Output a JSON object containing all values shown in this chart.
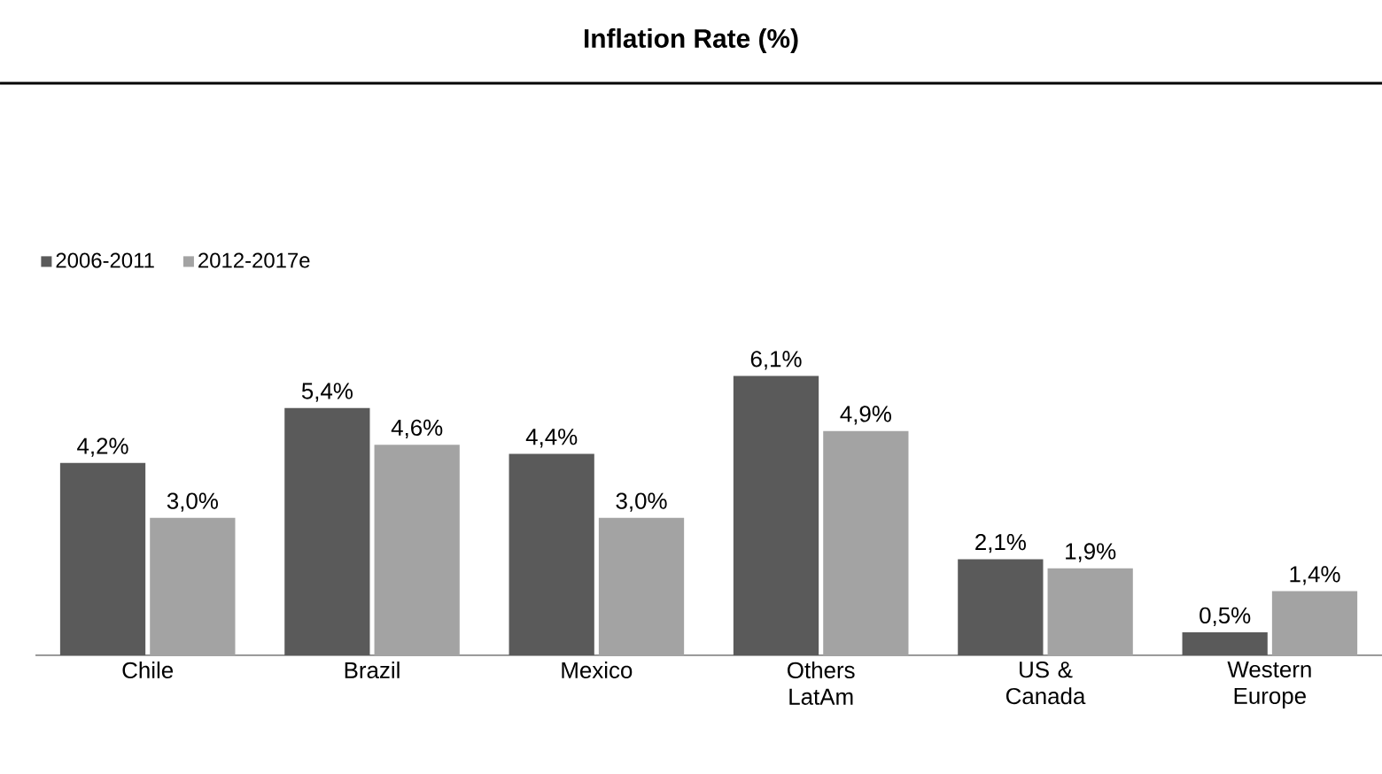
{
  "chart_data": {
    "type": "bar",
    "title": "Inflation Rate (%)",
    "categories": [
      "Chile",
      "Brazil",
      "Mexico",
      "Others LatAm",
      "US & Canada",
      "Western Europe"
    ],
    "series": [
      {
        "name": "2006-2011",
        "color": "#5a5a5a",
        "values": [
          4.2,
          5.4,
          4.4,
          6.1,
          2.1,
          0.5
        ],
        "value_labels": [
          "4,2%",
          "5,4%",
          "4,4%",
          "6,1%",
          "2,1%",
          "0,5%"
        ]
      },
      {
        "name": "2012-2017e",
        "color": "#a3a3a3",
        "values": [
          3.0,
          4.6,
          3.0,
          4.9,
          1.9,
          1.4
        ],
        "value_labels": [
          "3,0%",
          "4,6%",
          "3,0%",
          "4,9%",
          "1,9%",
          "1,4%"
        ]
      }
    ],
    "legend": "top left"
  }
}
